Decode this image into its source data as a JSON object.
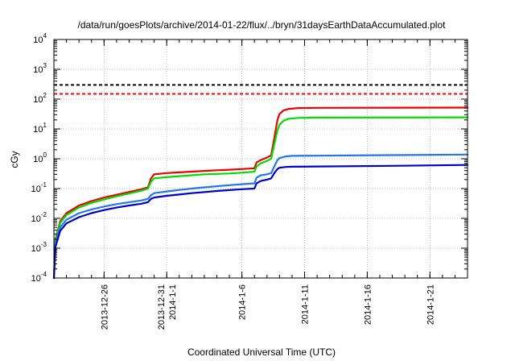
{
  "chart_data": {
    "type": "line",
    "title": "/data/run/goesPlots/archive/2014-01-22/flux/../bryn/31daysEarthDataAccumulated.plot",
    "xlabel": "Coordinated Universal Time (UTC)",
    "ylabel": "cGy",
    "y_scale": "log",
    "ylim": [
      0.0001,
      10000
    ],
    "xlim": [
      "2013-12-22",
      "2014-01-24"
    ],
    "grid": true,
    "y_ticks": [
      {
        "value": 0.0001,
        "base": "10",
        "exp": "-4"
      },
      {
        "value": 0.001,
        "base": "10",
        "exp": "-3"
      },
      {
        "value": 0.01,
        "base": "10",
        "exp": "-2"
      },
      {
        "value": 0.1,
        "base": "10",
        "exp": "-1"
      },
      {
        "value": 1,
        "base": "10",
        "exp": "0"
      },
      {
        "value": 10,
        "base": "10",
        "exp": "1"
      },
      {
        "value": 100,
        "base": "10",
        "exp": "2"
      },
      {
        "value": 1000,
        "base": "10",
        "exp": "3"
      },
      {
        "value": 10000,
        "base": "10",
        "exp": "4"
      }
    ],
    "x_ticks": [
      {
        "date": "2013-12-26",
        "lines": [
          "2013-12-26"
        ]
      },
      {
        "date": "2013-12-31",
        "lines": [
          "2013-12-31",
          "2014-1-1"
        ]
      },
      {
        "date": "2014-01-06",
        "lines": [
          "2014-1-6"
        ]
      },
      {
        "date": "2014-01-11",
        "lines": [
          "2014-1-11"
        ]
      },
      {
        "date": "2014-01-16",
        "lines": [
          "2014-1-16"
        ]
      },
      {
        "date": "2014-01-21",
        "lines": [
          "2014-1-21"
        ]
      }
    ],
    "thresholds": [
      {
        "value": 300,
        "color": "#000000",
        "style": "dashed"
      },
      {
        "value": 150,
        "color": "#ff0000",
        "style": "dashed"
      }
    ],
    "series": [
      {
        "color": "#ee0000",
        "points": [
          [
            "2013-12-22T00:00",
            0.0001
          ],
          [
            "2013-12-22T03:00",
            0.002
          ],
          [
            "2013-12-22T12:00",
            0.008
          ],
          [
            "2013-12-23",
            0.015
          ],
          [
            "2013-12-24",
            0.027
          ],
          [
            "2013-12-25",
            0.038
          ],
          [
            "2013-12-26",
            0.05
          ],
          [
            "2013-12-27",
            0.062
          ],
          [
            "2013-12-28",
            0.077
          ],
          [
            "2013-12-29",
            0.095
          ],
          [
            "2013-12-29T12:00",
            0.11
          ],
          [
            "2013-12-29T18:00",
            0.22
          ],
          [
            "2013-12-30",
            0.3
          ],
          [
            "2013-12-31",
            0.33
          ],
          [
            "2014-01-01",
            0.35
          ],
          [
            "2014-01-02",
            0.37
          ],
          [
            "2014-01-03",
            0.39
          ],
          [
            "2014-01-04",
            0.41
          ],
          [
            "2014-01-05",
            0.43
          ],
          [
            "2014-01-06",
            0.45
          ],
          [
            "2014-01-07",
            0.48
          ],
          [
            "2014-01-07T04:00",
            0.75
          ],
          [
            "2014-01-07T12:00",
            0.9
          ],
          [
            "2014-01-08",
            1.1
          ],
          [
            "2014-01-08T08:00",
            1.3
          ],
          [
            "2014-01-08T14:00",
            5.0
          ],
          [
            "2014-01-08T20:00",
            20
          ],
          [
            "2014-01-09",
            32
          ],
          [
            "2014-01-09T08:00",
            42
          ],
          [
            "2014-01-09T18:00",
            47
          ],
          [
            "2014-01-10T12:00",
            50
          ],
          [
            "2014-01-12",
            51
          ],
          [
            "2014-01-24",
            52
          ]
        ]
      },
      {
        "color": "#00dd00",
        "points": [
          [
            "2013-12-22T00:00",
            0.0001
          ],
          [
            "2013-12-22T03:00",
            0.0018
          ],
          [
            "2013-12-22T12:00",
            0.007
          ],
          [
            "2013-12-23",
            0.013
          ],
          [
            "2013-12-24",
            0.023
          ],
          [
            "2013-12-25",
            0.033
          ],
          [
            "2013-12-26",
            0.043
          ],
          [
            "2013-12-27",
            0.055
          ],
          [
            "2013-12-28",
            0.068
          ],
          [
            "2013-12-29",
            0.085
          ],
          [
            "2013-12-29T12:00",
            0.1
          ],
          [
            "2013-12-29T18:00",
            0.17
          ],
          [
            "2013-12-30",
            0.22
          ],
          [
            "2013-12-31",
            0.24
          ],
          [
            "2014-01-01",
            0.26
          ],
          [
            "2014-01-02",
            0.28
          ],
          [
            "2014-01-03",
            0.3
          ],
          [
            "2014-01-04",
            0.31
          ],
          [
            "2014-01-05",
            0.32
          ],
          [
            "2014-01-06",
            0.34
          ],
          [
            "2014-01-07",
            0.37
          ],
          [
            "2014-01-07T04:00",
            0.55
          ],
          [
            "2014-01-07T12:00",
            0.7
          ],
          [
            "2014-01-08",
            0.85
          ],
          [
            "2014-01-08T08:00",
            1.0
          ],
          [
            "2014-01-08T14:00",
            3.0
          ],
          [
            "2014-01-08T20:00",
            9
          ],
          [
            "2014-01-09",
            14
          ],
          [
            "2014-01-09T08:00",
            19
          ],
          [
            "2014-01-09T18:00",
            22
          ],
          [
            "2014-01-10T12:00",
            23.5
          ],
          [
            "2014-01-12",
            24
          ],
          [
            "2014-01-24",
            24.5
          ]
        ]
      },
      {
        "color": "#2277ee",
        "points": [
          [
            "2013-12-22T00:00",
            0.0001
          ],
          [
            "2013-12-22T03:00",
            0.0014
          ],
          [
            "2013-12-22T12:00",
            0.005
          ],
          [
            "2013-12-23",
            0.009
          ],
          [
            "2013-12-24",
            0.015
          ],
          [
            "2013-12-25",
            0.02
          ],
          [
            "2013-12-26",
            0.025
          ],
          [
            "2013-12-27",
            0.03
          ],
          [
            "2013-12-28",
            0.035
          ],
          [
            "2013-12-29",
            0.04
          ],
          [
            "2013-12-29T12:00",
            0.045
          ],
          [
            "2013-12-29T18:00",
            0.06
          ],
          [
            "2013-12-30",
            0.07
          ],
          [
            "2013-12-31",
            0.08
          ],
          [
            "2014-01-01",
            0.09
          ],
          [
            "2014-01-02",
            0.1
          ],
          [
            "2014-01-03",
            0.11
          ],
          [
            "2014-01-04",
            0.12
          ],
          [
            "2014-01-05",
            0.13
          ],
          [
            "2014-01-06",
            0.14
          ],
          [
            "2014-01-07",
            0.15
          ],
          [
            "2014-01-07T04:00",
            0.23
          ],
          [
            "2014-01-07T12:00",
            0.28
          ],
          [
            "2014-01-08",
            0.3
          ],
          [
            "2014-01-08T08:00",
            0.33
          ],
          [
            "2014-01-08T14:00",
            0.55
          ],
          [
            "2014-01-08T20:00",
            0.9
          ],
          [
            "2014-01-09",
            1.05
          ],
          [
            "2014-01-09T12:00",
            1.2
          ],
          [
            "2014-01-10",
            1.25
          ],
          [
            "2014-01-12",
            1.27
          ],
          [
            "2014-01-18",
            1.32
          ],
          [
            "2014-01-24",
            1.38
          ]
        ]
      },
      {
        "color": "#0000cc",
        "points": [
          [
            "2013-12-22T00:00",
            0.0001
          ],
          [
            "2013-12-22T03:00",
            0.0011
          ],
          [
            "2013-12-22T12:00",
            0.0038
          ],
          [
            "2013-12-23",
            0.0068
          ],
          [
            "2013-12-24",
            0.011
          ],
          [
            "2013-12-25",
            0.015
          ],
          [
            "2013-12-26",
            0.019
          ],
          [
            "2013-12-27",
            0.023
          ],
          [
            "2013-12-28",
            0.027
          ],
          [
            "2013-12-29",
            0.031
          ],
          [
            "2013-12-29T12:00",
            0.035
          ],
          [
            "2013-12-29T18:00",
            0.045
          ],
          [
            "2013-12-30",
            0.05
          ],
          [
            "2013-12-31",
            0.057
          ],
          [
            "2014-01-01",
            0.063
          ],
          [
            "2014-01-02",
            0.07
          ],
          [
            "2014-01-03",
            0.076
          ],
          [
            "2014-01-04",
            0.083
          ],
          [
            "2014-01-05",
            0.089
          ],
          [
            "2014-01-06",
            0.095
          ],
          [
            "2014-01-07",
            0.1
          ],
          [
            "2014-01-07T04:00",
            0.15
          ],
          [
            "2014-01-07T12:00",
            0.18
          ],
          [
            "2014-01-08",
            0.2
          ],
          [
            "2014-01-08T08:00",
            0.22
          ],
          [
            "2014-01-08T14:00",
            0.33
          ],
          [
            "2014-01-08T20:00",
            0.45
          ],
          [
            "2014-01-09",
            0.5
          ],
          [
            "2014-01-09T12:00",
            0.53
          ],
          [
            "2014-01-10",
            0.54
          ],
          [
            "2014-01-12",
            0.55
          ],
          [
            "2014-01-18",
            0.58
          ],
          [
            "2014-01-24",
            0.62
          ]
        ]
      }
    ]
  }
}
